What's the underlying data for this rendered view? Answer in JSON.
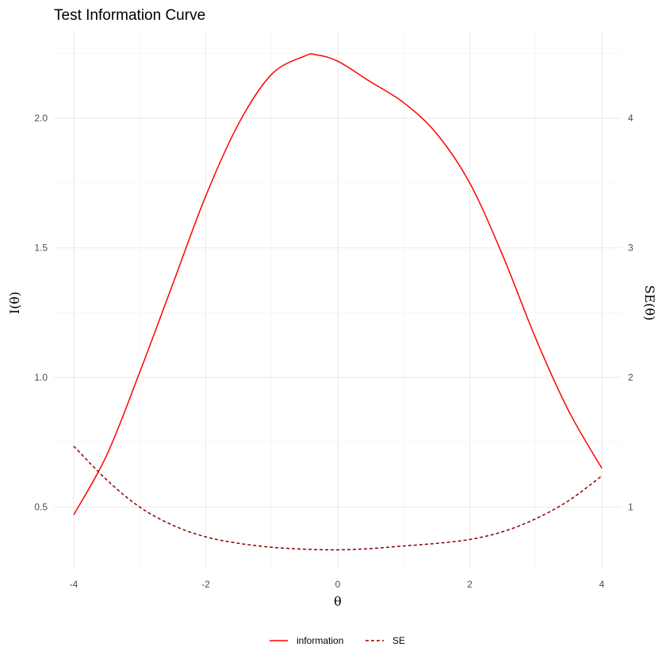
{
  "chart_data": {
    "type": "line",
    "title": "Test Information Curve",
    "xlabel": "θ",
    "ylabel_left": "I(θ)",
    "ylabel_right": "SE(θ)",
    "xlim": [
      -4.3,
      4.3
    ],
    "ylim_left": [
      0.26,
      2.34
    ],
    "ylim_right": [
      0.52,
      4.68
    ],
    "x_ticks": [
      -4,
      -2,
      0,
      2,
      4
    ],
    "x_tick_labels": [
      "-4",
      "-2",
      "0",
      "2",
      "4"
    ],
    "y_left_ticks": [
      0.5,
      1.0,
      1.5,
      2.0
    ],
    "y_left_tick_labels": [
      "0.5",
      "1.0",
      "1.5",
      "2.0"
    ],
    "y_right_ticks": [
      1,
      2,
      3,
      4
    ],
    "y_right_tick_labels": [
      "1",
      "2",
      "3",
      "4"
    ],
    "grid": true,
    "legend_position": "bottom",
    "series": [
      {
        "name": "information",
        "axis": "left",
        "color": "#ff0000",
        "linetype": "solid",
        "x": [
          -4,
          -3.5,
          -3,
          -2.5,
          -2,
          -1.5,
          -1,
          -0.5,
          -0.33,
          0,
          0.5,
          1,
          1.5,
          2,
          2.5,
          3,
          3.5,
          4
        ],
        "y": [
          0.47,
          0.7,
          1.02,
          1.36,
          1.7,
          1.98,
          2.17,
          2.24,
          2.245,
          2.22,
          2.14,
          2.06,
          1.94,
          1.75,
          1.47,
          1.15,
          0.87,
          0.65
        ]
      },
      {
        "name": "SE",
        "axis": "right",
        "color": "#8b0000",
        "linetype": "dashed",
        "x": [
          -4,
          -3.5,
          -3,
          -2.5,
          -2,
          -1.5,
          -1,
          -0.5,
          0,
          0.5,
          1,
          1.5,
          2,
          2.5,
          3,
          3.5,
          4
        ],
        "y": [
          1.47,
          1.21,
          1.0,
          0.86,
          0.77,
          0.72,
          0.69,
          0.675,
          0.67,
          0.68,
          0.7,
          0.72,
          0.75,
          0.81,
          0.91,
          1.05,
          1.24
        ]
      }
    ]
  }
}
